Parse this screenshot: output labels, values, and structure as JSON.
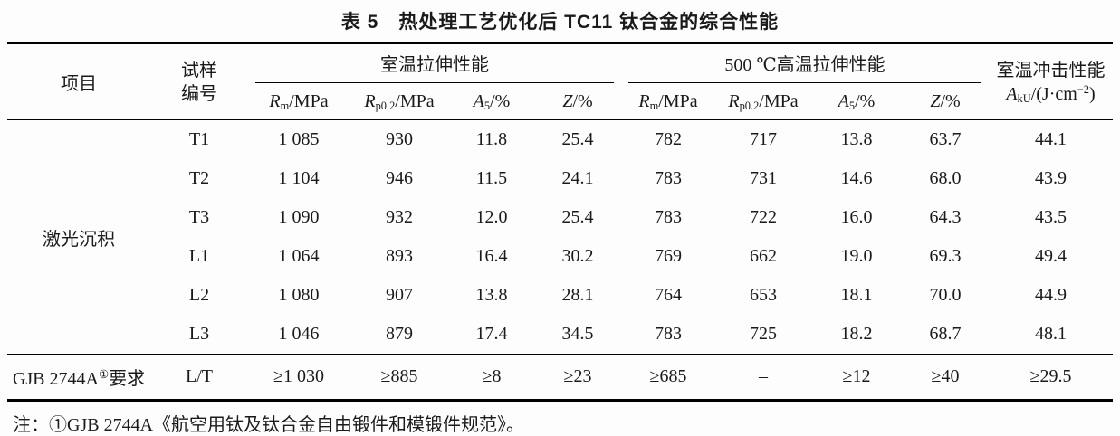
{
  "title": "表 5　热处理工艺优化后 TC11 钛合金的综合性能",
  "header": {
    "item": "项目",
    "sample": {
      "line1": "试样",
      "line2": "编号"
    },
    "group_rt": "室温拉伸性能",
    "group_ht": "500 ℃高温拉伸性能",
    "impact": {
      "line1": "室温冲击性能",
      "line2": [
        {
          "t": "A",
          "s": "i"
        },
        {
          "t": "kU",
          "s": "sub"
        },
        {
          "t": "/(J·cm"
        },
        {
          "t": "−2",
          "s": "sup"
        },
        {
          "t": ")"
        }
      ]
    },
    "cols": {
      "rm": [
        {
          "t": "R",
          "s": "i"
        },
        {
          "t": "m",
          "s": "sub"
        },
        {
          "t": "/MPa"
        }
      ],
      "rp02": [
        {
          "t": "R",
          "s": "i"
        },
        {
          "t": "p0.2",
          "s": "sub"
        },
        {
          "t": "/MPa"
        }
      ],
      "a5": [
        {
          "t": "A",
          "s": "i"
        },
        {
          "t": "5",
          "s": "sub"
        },
        {
          "t": "/%"
        }
      ],
      "z": [
        {
          "t": "Z",
          "s": "i"
        },
        {
          "t": "/%"
        }
      ]
    }
  },
  "body": {
    "group_label": "激光沉积",
    "rows": [
      [
        "T1",
        "1 085",
        "930",
        "11.8",
        "25.4",
        "782",
        "717",
        "13.8",
        "63.7",
        "44.1"
      ],
      [
        "T2",
        "1 104",
        "946",
        "11.5",
        "24.1",
        "783",
        "731",
        "14.6",
        "68.0",
        "43.9"
      ],
      [
        "T3",
        "1 090",
        "932",
        "12.0",
        "25.4",
        "783",
        "722",
        "16.0",
        "64.3",
        "43.5"
      ],
      [
        "L1",
        "1 064",
        "893",
        "16.4",
        "30.2",
        "769",
        "662",
        "19.0",
        "69.3",
        "49.4"
      ],
      [
        "L2",
        "1 080",
        "907",
        "13.8",
        "28.1",
        "764",
        "653",
        "18.1",
        "70.0",
        "44.9"
      ],
      [
        "L3",
        "1 046",
        "879",
        "17.4",
        "34.5",
        "783",
        "725",
        "18.2",
        "68.7",
        "48.1"
      ]
    ]
  },
  "requirement": {
    "label": [
      {
        "t": "GJB 2744A"
      },
      {
        "t": "①",
        "s": "sup"
      },
      {
        "t": "要求"
      }
    ],
    "values": [
      "L/T",
      "≥1 030",
      "≥885",
      "≥8",
      "≥23",
      "≥685",
      "–",
      "≥12",
      "≥40",
      "≥29.5"
    ]
  },
  "footnote": "注：①GJB 2744A《航空用钛及钛合金自由锻件和模锻件规范》。"
}
